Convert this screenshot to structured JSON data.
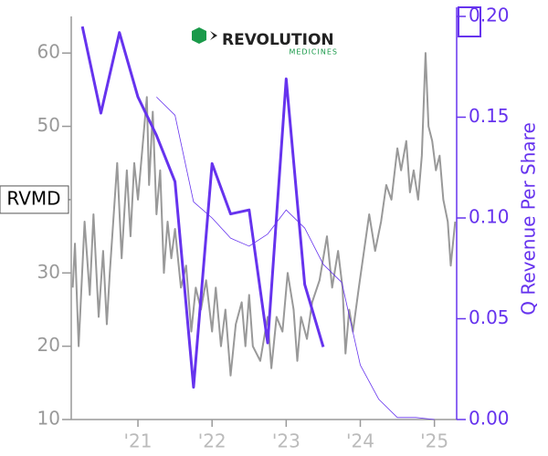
{
  "chart_data": {
    "type": "line",
    "logo": {
      "text": "REVOLUTION",
      "subtext": "MEDICINES"
    },
    "xlim": [
      2020.1,
      2025.3
    ],
    "xticks": [
      {
        "value": 2021,
        "label": "'21"
      },
      {
        "value": 2022,
        "label": "'22"
      },
      {
        "value": 2023,
        "label": "'23"
      },
      {
        "value": 2024,
        "label": "'24"
      },
      {
        "value": 2025,
        "label": "'25"
      }
    ],
    "ylim": [
      10,
      65
    ],
    "yticks": [
      10,
      20,
      30,
      40,
      50,
      60
    ],
    "y2lim": [
      0,
      0.2
    ],
    "y2ticks": [
      {
        "value": 0,
        "label": "0.00"
      },
      {
        "value": 0.05,
        "label": "0.05"
      },
      {
        "value": 0.1,
        "label": "0.10"
      },
      {
        "value": 0.15,
        "label": "0.15"
      },
      {
        "value": 0.2,
        "label": "0.20"
      }
    ],
    "series": [
      {
        "name": "RVMD",
        "color": "#999999",
        "x": [
          2020.12,
          2020.15,
          2020.2,
          2020.28,
          2020.35,
          2020.4,
          2020.47,
          2020.53,
          2020.58,
          2020.62,
          2020.72,
          2020.78,
          2020.85,
          2020.9,
          2020.95,
          2021.0,
          2021.12,
          2021.15,
          2021.2,
          2021.25,
          2021.3,
          2021.35,
          2021.4,
          2021.45,
          2021.5,
          2021.58,
          2021.65,
          2021.72,
          2021.78,
          2021.85,
          2021.92,
          2022.0,
          2022.05,
          2022.12,
          2022.18,
          2022.25,
          2022.32,
          2022.4,
          2022.45,
          2022.5,
          2022.55,
          2022.65,
          2022.75,
          2022.8,
          2022.87,
          2022.95,
          2023.02,
          2023.1,
          2023.15,
          2023.2,
          2023.28,
          2023.35,
          2023.45,
          2023.55,
          2023.62,
          2023.7,
          2023.76,
          2023.8,
          2023.85,
          2023.9,
          2023.98,
          2024.05,
          2024.12,
          2024.2,
          2024.28,
          2024.35,
          2024.42,
          2024.5,
          2024.55,
          2024.62,
          2024.67,
          2024.72,
          2024.78,
          2024.83,
          2024.88,
          2024.92,
          2024.97,
          2025.02,
          2025.07,
          2025.12,
          2025.18,
          2025.22,
          2025.28
        ],
        "values": [
          28,
          34,
          20,
          37,
          27,
          38,
          24,
          33,
          23,
          30,
          45,
          32,
          44,
          35,
          45,
          40,
          54,
          42,
          52,
          38,
          44,
          30,
          37,
          32,
          36,
          28,
          31,
          22,
          28,
          25,
          29,
          22,
          28,
          20,
          25,
          16,
          23,
          26,
          20,
          27,
          20,
          18,
          24,
          17,
          24,
          22,
          30,
          25,
          18,
          24,
          21,
          26,
          29,
          35,
          28,
          33,
          28,
          19,
          25,
          22,
          28,
          33,
          38,
          33,
          37,
          42,
          40,
          47,
          44,
          48,
          41,
          44,
          40,
          46,
          60,
          50,
          48,
          44,
          46,
          40,
          37,
          31,
          37
        ]
      },
      {
        "name": "Q Revenue Per Share",
        "color": "#6633ee",
        "axis": "y2",
        "x": [
          2020.25,
          2020.5,
          2020.75,
          2021.0,
          2021.25,
          2021.5,
          2021.75,
          2022.0,
          2022.25,
          2022.5,
          2022.75,
          2023.0,
          2023.25,
          2023.5
        ],
        "values": [
          0.195,
          0.152,
          0.192,
          0.16,
          0.141,
          0.118,
          0.016,
          0.127,
          0.102,
          0.104,
          0.038,
          0.169,
          0.067,
          0.036
        ]
      },
      {
        "color": "#6633ee",
        "axis": "y2",
        "x": [
          2021.25,
          2021.5,
          2021.75,
          2022.0,
          2022.25,
          2022.5,
          2022.75,
          2023.0,
          2023.25,
          2023.5,
          2023.75,
          2024.0,
          2024.25,
          2024.5,
          2024.75,
          2025.0
        ],
        "values": [
          0.16,
          0.151,
          0.108,
          0.1,
          0.09,
          0.086,
          0.092,
          0.104,
          0.095,
          0.077,
          0.068,
          0.027,
          0.01,
          0.001,
          0.001,
          0
        ]
      }
    ]
  }
}
